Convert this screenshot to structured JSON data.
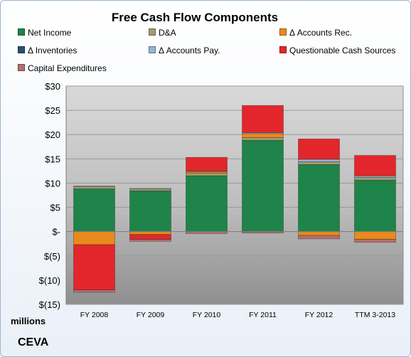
{
  "chart_data": {
    "type": "bar",
    "stacked": true,
    "title": "Free Cash Flow Components",
    "categories": [
      "FY 2008",
      "FY 2009",
      "FY 2010",
      "FY 2011",
      "FY 2012",
      "TTM 3-2013"
    ],
    "ylim": [
      -15,
      30
    ],
    "yticks": [
      30,
      25,
      20,
      15,
      10,
      5,
      0,
      -5,
      -10,
      -15
    ],
    "ytick_labels": [
      "$30",
      "$25",
      "$20",
      "$15",
      "$10",
      "$5",
      "$-",
      "$(5)",
      "$(10)",
      "$(15)"
    ],
    "ylabel": "millions",
    "grid": true,
    "legend_position": "top",
    "series": [
      {
        "name": "Net Income",
        "color": "#1e8449",
        "values": [
          8.8,
          8.4,
          11.5,
          18.8,
          13.8,
          10.6
        ]
      },
      {
        "name": "D&A",
        "color": "#a39a6f",
        "values": [
          0.5,
          0.4,
          0.6,
          0.6,
          0.6,
          0.6
        ]
      },
      {
        "name": "Δ Accounts Rec.",
        "color": "#e98a1d",
        "values": [
          -2.7,
          -0.6,
          0.3,
          0.8,
          -0.8,
          -1.6
        ]
      },
      {
        "name": "Δ Inventories",
        "color": "#2e4e6f",
        "values": [
          0,
          0,
          0,
          0,
          0,
          0
        ]
      },
      {
        "name": "Δ Accounts Pay.",
        "color": "#95b3d7",
        "values": [
          0.1,
          0.1,
          0.1,
          0.2,
          0.5,
          0.3
        ]
      },
      {
        "name": "Questionable Cash Sources",
        "color": "#e3262b",
        "values": [
          -9.3,
          -1.0,
          2.8,
          5.6,
          4.2,
          4.2
        ]
      },
      {
        "name": "Capital Expenditures",
        "color": "#b36f6f",
        "values": [
          -0.5,
          -0.4,
          -0.4,
          -0.3,
          -0.7,
          -0.6
        ]
      }
    ]
  },
  "company": "CEVA"
}
